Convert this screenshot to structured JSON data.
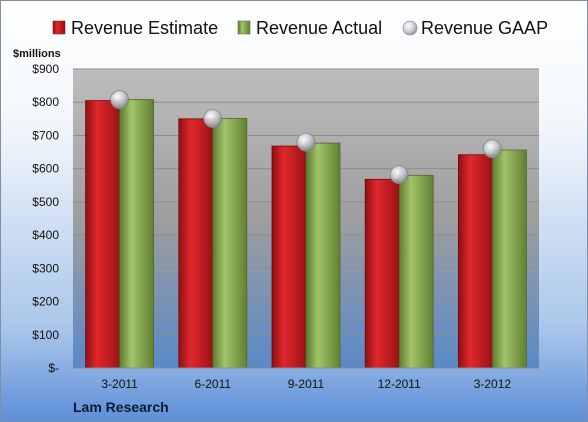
{
  "chart_data": {
    "type": "bar",
    "unit_label": "$millions",
    "company": "Lam Research",
    "categories": [
      "3-2011",
      "6-2011",
      "9-2011",
      "12-2011",
      "3-2012"
    ],
    "series": [
      {
        "name": "Revenue Estimate",
        "kind": "bar",
        "color": "#c8181e",
        "values": [
          805,
          750,
          668,
          568,
          642
        ]
      },
      {
        "name": "Revenue Actual",
        "kind": "bar",
        "color": "#86a84c",
        "values": [
          808,
          751,
          677,
          580,
          656
        ]
      },
      {
        "name": "Revenue GAAP",
        "kind": "marker",
        "color": "#c9ccd1",
        "values": [
          808,
          751,
          680,
          582,
          660
        ]
      }
    ],
    "y_ticks": [
      "$-",
      "$100",
      "$200",
      "$300",
      "$400",
      "$500",
      "$600",
      "$700",
      "$800",
      "$900"
    ],
    "ylim": [
      0,
      900
    ],
    "grid": true,
    "legend_position": "top"
  }
}
